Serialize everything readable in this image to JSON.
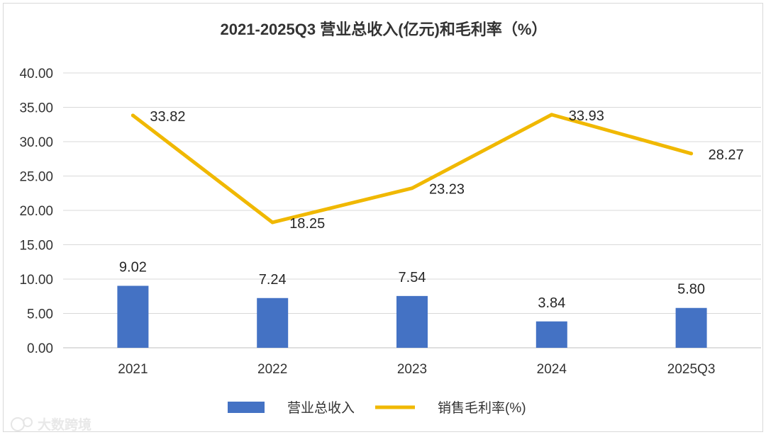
{
  "chart_data": {
    "type": "bar+line",
    "title": "2021-2025Q3 营业总收入(亿元)和毛利率（%）",
    "categories": [
      "2021",
      "2022",
      "2023",
      "2024",
      "2025Q3"
    ],
    "series": [
      {
        "name": "营业总收入",
        "type": "bar",
        "color": "#4472c4",
        "values": [
          9.02,
          7.24,
          7.54,
          3.84,
          5.8
        ],
        "labels": [
          "9.02",
          "7.24",
          "7.54",
          "3.84",
          "5.80"
        ]
      },
      {
        "name": "销售毛利率(%)",
        "type": "line",
        "color": "#f0b800",
        "values": [
          33.82,
          18.25,
          23.23,
          33.93,
          28.27
        ],
        "labels": [
          "33.82",
          "18.25",
          "23.23",
          "33.93",
          "28.27"
        ]
      }
    ],
    "ylim": [
      0,
      40
    ],
    "yticks": [
      "0.00",
      "5.00",
      "10.00",
      "15.00",
      "20.00",
      "25.00",
      "30.00",
      "35.00",
      "40.00"
    ],
    "grid": true,
    "legend": "bottom"
  },
  "watermark": "大数跨境"
}
